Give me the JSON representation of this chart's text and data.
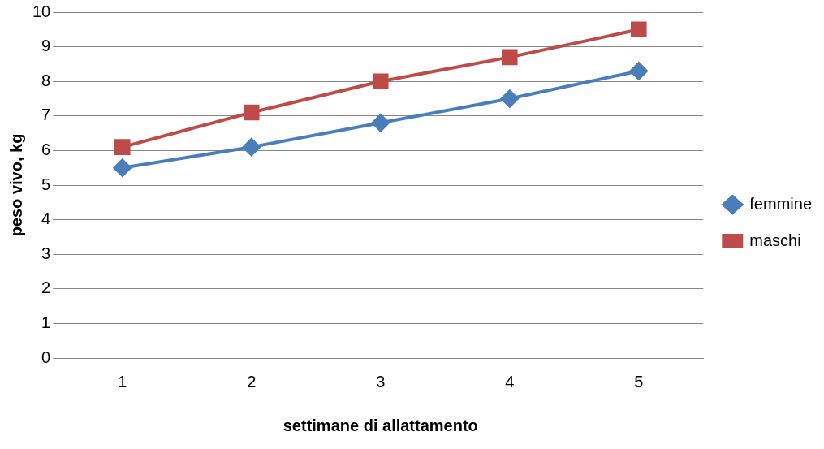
{
  "chart_data": {
    "type": "line",
    "xlabel": "settimane di allattamento",
    "ylabel": "peso vivo, kg",
    "categories": [
      "1",
      "2",
      "3",
      "4",
      "5"
    ],
    "series": [
      {
        "name": "femmine",
        "color": "#4a7ebb",
        "marker": "diamond",
        "values": [
          5.5,
          6.1,
          6.8,
          7.5,
          8.3
        ]
      },
      {
        "name": "maschi",
        "color": "#be4b48",
        "marker": "square",
        "values": [
          6.1,
          7.1,
          8.0,
          8.7,
          9.5
        ]
      }
    ],
    "ylim": [
      0,
      10
    ],
    "yticks": [
      0,
      1,
      2,
      3,
      4,
      5,
      6,
      7,
      8,
      9,
      10
    ],
    "grid": "y",
    "legend": "right",
    "line_style": "solid"
  }
}
